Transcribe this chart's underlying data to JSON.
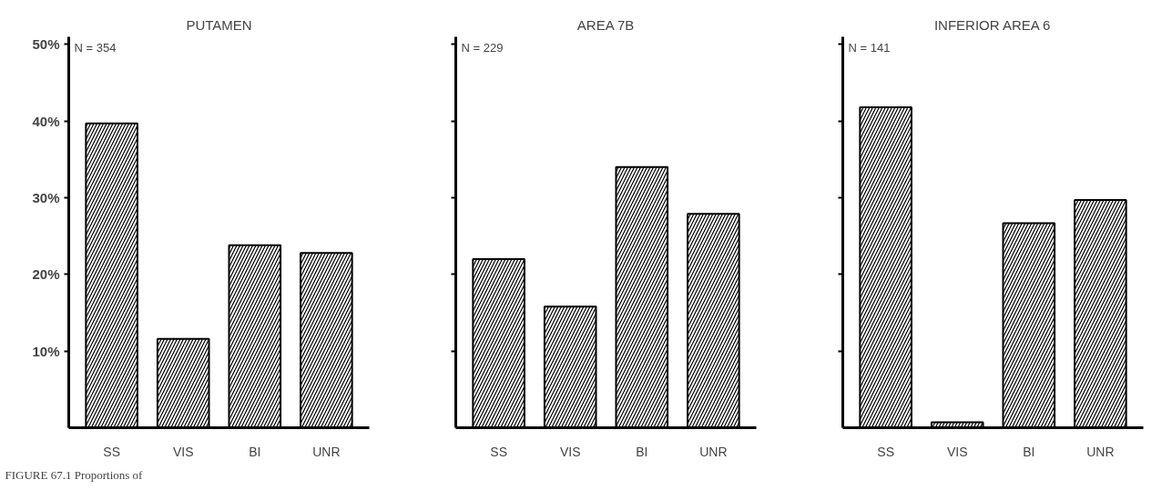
{
  "chart_data": [
    {
      "type": "bar",
      "title": "PUTAMEN",
      "categories": [
        "SS",
        "VIS",
        "BI",
        "UNR"
      ],
      "values": [
        39.7,
        11.6,
        23.8,
        22.8
      ],
      "color": "#000000",
      "ylim": [
        0,
        51
      ],
      "yticks": [
        {
          "value": 10,
          "label": "10%"
        },
        {
          "value": 20,
          "label": "20%"
        },
        {
          "value": 30,
          "label": "30%"
        },
        {
          "value": 40,
          "label": "40%"
        },
        {
          "value": 50,
          "label": "50%"
        }
      ],
      "grid": false,
      "annotations": [
        "N = 354",
        "FIGURE 67.1  Proportions of"
      ]
    },
    {
      "type": "bar",
      "title": "AREA 7B",
      "categories": [
        "SS",
        "VIS",
        "BI",
        "UNR"
      ],
      "values": [
        22,
        15.8,
        34,
        27.9
      ],
      "color": "#000000",
      "ylim": [
        0,
        51
      ],
      "yticks": [
        {
          "value": 10,
          "label": null
        },
        {
          "value": 20,
          "label": null
        },
        {
          "value": 30,
          "label": null
        },
        {
          "value": 40,
          "label": null
        },
        {
          "value": 50,
          "label": null
        }
      ],
      "tick_labels": "x",
      "grid": false,
      "annotations": [
        "N = 229"
      ]
    },
    {
      "type": "bar",
      "title": "INFERIOR AREA 6",
      "categories": [
        "SS",
        "VIS",
        "BI",
        "UNR"
      ],
      "values": [
        41.8,
        0.7,
        26.7,
        29.7
      ],
      "color": "#000000",
      "ylim": [
        0,
        51
      ],
      "yticks": [
        {
          "value": 10,
          "label": null
        },
        {
          "value": 20,
          "label": null
        },
        {
          "value": 30,
          "label": null
        },
        {
          "value": 40,
          "label": null
        },
        {
          "value": 50,
          "label": null
        }
      ],
      "tick_labels": "x",
      "grid": false,
      "annotations": [
        "N = 141"
      ]
    }
  ]
}
